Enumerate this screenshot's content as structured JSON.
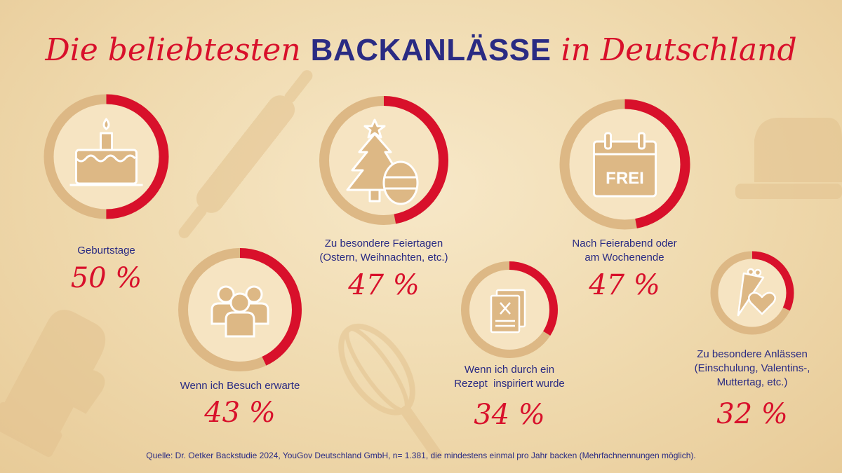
{
  "title": {
    "part1": "Die beliebtesten ",
    "highlight": "BACKANLÄSSE",
    "part2": " in Deutschland"
  },
  "chart_data": {
    "type": "donut",
    "unit": "%",
    "categories": [
      "Geburtstage",
      "Zu besondere Feiertagen (Ostern, Weihnachten, etc.)",
      "Nach Feierabend oder am Wochenende",
      "Wenn ich Besuch erwarte",
      "Wenn ich durch ein Rezept inspiriert wurde",
      "Zu besondere Anlässen (Einschulung, Valentins-, Muttertag, etc.)"
    ],
    "values": [
      50,
      47,
      47,
      43,
      34,
      32
    ],
    "colors": {
      "arc": "#d8102b",
      "track": "#ddb885",
      "disc": "#f6e4c2",
      "icon": "#ddb885"
    }
  },
  "items": [
    {
      "label": "Geburtstage",
      "value_text": "50 %",
      "icon": "cake-icon"
    },
    {
      "label_lines": [
        "Zu besondere Feiertagen",
        "(Ostern, Weihnachten, etc.)"
      ],
      "value_text": "47 %",
      "icon": "christmas-tree-egg-icon"
    },
    {
      "label_lines": [
        "Nach Feierabend oder",
        "am Wochenende"
      ],
      "value_text": "47 %",
      "icon": "calendar-icon",
      "icon_text": "FREI"
    },
    {
      "label": "Wenn ich Besuch erwarte",
      "value_text": "43 %",
      "icon": "people-icon"
    },
    {
      "label_lines": [
        "Wenn ich durch ein",
        "Rezept  inspiriert wurde"
      ],
      "value_text": "34 %",
      "icon": "recipe-icon"
    },
    {
      "label_lines": [
        "Zu besondere Anlässen",
        "(Einschulung, Valentins-,",
        "Muttertag, etc.)"
      ],
      "value_text": "32 %",
      "icon": "piping-bag-heart-icon"
    }
  ],
  "source": "Quelle: Dr. Oetker Backstudie 2024, YouGov Deutschland GmbH, n= 1.381, die mindestens einmal pro Jahr backen (Mehrfachnennungen möglich)."
}
